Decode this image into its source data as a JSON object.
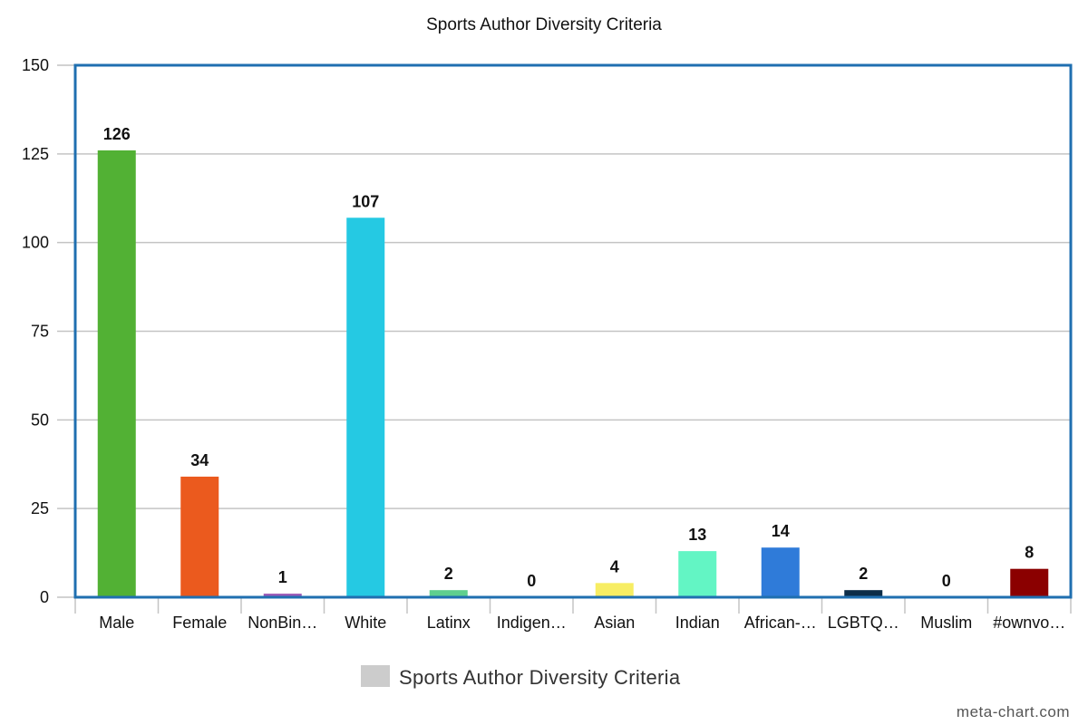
{
  "chart_data": {
    "type": "bar",
    "title": "Sports Author Diversity Criteria",
    "xlabel": "",
    "ylabel": "",
    "categories": [
      "Male",
      "Female",
      "NonBin…",
      "White",
      "Latinx",
      "Indigen…",
      "Asian",
      "Indian",
      "African-…",
      "LGBTQ…",
      "Muslim",
      "#ownvo…"
    ],
    "values": [
      126,
      34,
      1,
      107,
      2,
      0,
      4,
      13,
      14,
      2,
      0,
      8
    ],
    "data_labels": [
      "126",
      "34",
      "1",
      "107",
      "2",
      "0",
      "4",
      "13",
      "14",
      "2",
      "0",
      "8"
    ],
    "colors": [
      "#52b134",
      "#eb5a1e",
      "#9b59b6",
      "#25c9e3",
      "#5fcf8e",
      "#f5a623",
      "#f7ed63",
      "#63f5c4",
      "#2f7bd9",
      "#0c2d48",
      "#999999",
      "#8b0000"
    ],
    "ylim": [
      0,
      150
    ],
    "yticks": [
      0,
      25,
      50,
      75,
      100,
      125,
      150
    ],
    "ytick_labels": [
      "0",
      "25",
      "50",
      "75",
      "100",
      "125",
      "150"
    ],
    "grid": true,
    "legend": {
      "position": "bottom-center",
      "entries": [
        {
          "label": "Sports Author Diversity Criteria",
          "color": "#cccccc"
        }
      ]
    },
    "frame_color": "#1f6fb0"
  },
  "watermark": "meta-chart.com"
}
